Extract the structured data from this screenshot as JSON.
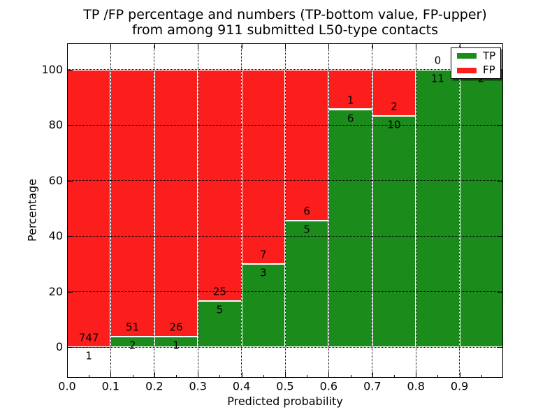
{
  "figure": {
    "title_line1": "TP /FP percentage and numbers (TP-bottom value, FP-upper)",
    "title_line2": "from among 911 submitted L50-type contacts"
  },
  "chart_data": {
    "type": "bar",
    "stacked": true,
    "title": "TP /FP percentage and numbers (TP-bottom value, FP-upper) from among 911 submitted L50-type contacts",
    "xlabel": "Predicted probability",
    "ylabel": "Percentage",
    "total_contacts": 911,
    "xlim": [
      0.0,
      1.0
    ],
    "ylim": [
      -11.05,
      109.5
    ],
    "x_tick_values": [
      0.0,
      0.1,
      0.2,
      0.3,
      0.4,
      0.5,
      0.6,
      0.7,
      0.8,
      0.9
    ],
    "x_tick_labels": [
      "0.0",
      "0.1",
      "0.2",
      "0.3",
      "0.4",
      "0.5",
      "0.6",
      "0.7",
      "0.8",
      "0.9"
    ],
    "x_minor_tick_values": [
      0.05,
      0.15,
      0.25,
      0.35,
      0.45,
      0.55,
      0.65,
      0.75,
      0.85,
      0.95
    ],
    "y_tick_values": [
      0,
      20,
      40,
      60,
      80,
      100
    ],
    "y_tick_labels": [
      "0",
      "20",
      "40",
      "60",
      "80",
      "100"
    ],
    "grid": {
      "style": "dotted",
      "color": "#000000",
      "on": true
    },
    "bar_edge_color": "#ffffff",
    "bar_bins": [
      {
        "x0": 0.0,
        "x1": 0.1,
        "tp": 1,
        "fp": 747
      },
      {
        "x0": 0.1,
        "x1": 0.2,
        "tp": 2,
        "fp": 51
      },
      {
        "x0": 0.2,
        "x1": 0.3,
        "tp": 1,
        "fp": 26
      },
      {
        "x0": 0.3,
        "x1": 0.4,
        "tp": 5,
        "fp": 25
      },
      {
        "x0": 0.4,
        "x1": 0.5,
        "tp": 3,
        "fp": 7
      },
      {
        "x0": 0.5,
        "x1": 0.6,
        "tp": 5,
        "fp": 6
      },
      {
        "x0": 0.6,
        "x1": 0.7,
        "tp": 6,
        "fp": 1
      },
      {
        "x0": 0.7,
        "x1": 0.8,
        "tp": 10,
        "fp": 2
      },
      {
        "x0": 0.8,
        "x1": 0.9,
        "tp": 11,
        "fp": 0
      },
      {
        "x0": 0.9,
        "x1": 1.0,
        "tp": 2,
        "fp": 0
      }
    ],
    "series": [
      {
        "name": "TP",
        "color": "#1b8c1b"
      },
      {
        "name": "FP",
        "color": "#fc1d1d"
      }
    ],
    "legend": {
      "position": "upper right",
      "entries": [
        {
          "label": "TP",
          "color": "#1b8c1b"
        },
        {
          "label": "FP",
          "color": "#fc1d1d"
        }
      ]
    }
  }
}
